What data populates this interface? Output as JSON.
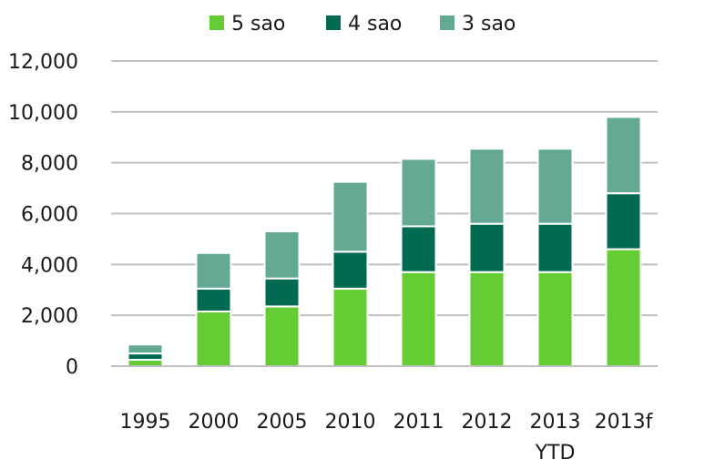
{
  "chart_data": {
    "type": "bar",
    "stacked": true,
    "categories": [
      [
        "1995"
      ],
      [
        "2000"
      ],
      [
        "2005"
      ],
      [
        "2010"
      ],
      [
        "2011"
      ],
      [
        "2012"
      ],
      [
        "2013",
        "YTD"
      ],
      [
        "2013f"
      ]
    ],
    "series": [
      {
        "name": "5 sao",
        "color": "#66cc33",
        "values": [
          250,
          2150,
          2350,
          3050,
          3700,
          3700,
          3700,
          4600
        ]
      },
      {
        "name": "4 sao",
        "color": "#006b50",
        "values": [
          250,
          900,
          1100,
          1450,
          1800,
          1900,
          1900,
          2200
        ]
      },
      {
        "name": "3 sao",
        "color": "#64a994",
        "values": [
          350,
          1400,
          1850,
          2750,
          2650,
          2950,
          2950,
          3000
        ]
      }
    ],
    "ylim": [
      0,
      12000
    ],
    "yticks": [
      0,
      2000,
      4000,
      6000,
      8000,
      10000,
      12000
    ],
    "ytick_labels": [
      "0",
      "2,000",
      "4,000",
      "6,000",
      "8,000",
      "10,000",
      "12,000"
    ],
    "grid": true,
    "legend_position": "top-center",
    "title": "",
    "xlabel": "",
    "ylabel": ""
  }
}
